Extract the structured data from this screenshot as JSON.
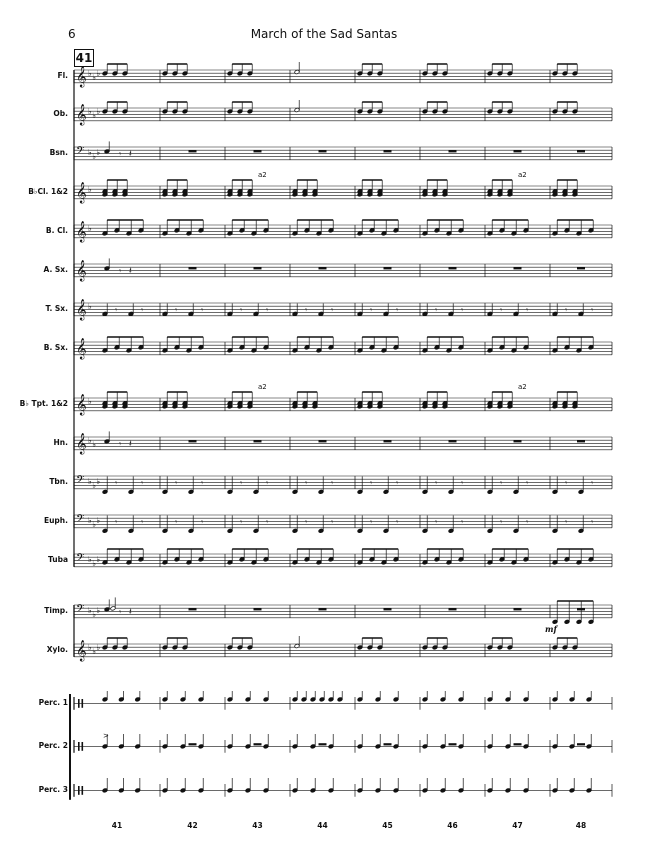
{
  "header": {
    "page_number": "6",
    "title": "March of the Sad Santas"
  },
  "rehearsal_mark": "41",
  "instruments": [
    {
      "label": "Fl.",
      "clef": "treble",
      "key": "flats3"
    },
    {
      "label": "Ob.",
      "clef": "treble",
      "key": "flats3"
    },
    {
      "label": "Bsn.",
      "clef": "bass",
      "key": "flats3"
    },
    {
      "label": "B♭Cl. 1&2",
      "clef": "treble",
      "key": "flats1"
    },
    {
      "label": "B. Cl.",
      "clef": "treble",
      "key": "flats1"
    },
    {
      "label": "A. Sx.",
      "clef": "treble",
      "key": "none"
    },
    {
      "label": "T. Sx.",
      "clef": "treble",
      "key": "flats1"
    },
    {
      "label": "B. Sx.",
      "clef": "treble",
      "key": "none"
    },
    {
      "label": "B♭ Tpt. 1&2",
      "clef": "treble",
      "key": "flats1"
    },
    {
      "label": "Hn.",
      "clef": "treble",
      "key": "flats2"
    },
    {
      "label": "Tbn.",
      "clef": "bass",
      "key": "flats3"
    },
    {
      "label": "Euph.",
      "clef": "bass",
      "key": "flats3"
    },
    {
      "label": "Tuba",
      "clef": "bass",
      "key": "flats3"
    },
    {
      "label": "Timp.",
      "clef": "bass",
      "key": "flats3"
    },
    {
      "label": "Xylo.",
      "clef": "treble",
      "key": "flats3"
    },
    {
      "label": "Perc. 1",
      "clef": "perc",
      "key": "none"
    },
    {
      "label": "Perc. 2",
      "clef": "perc",
      "key": "none"
    },
    {
      "label": "Perc. 3",
      "clef": "perc",
      "key": "none"
    }
  ],
  "annotations": {
    "a2": "a2",
    "dynamic_mf": "mf"
  },
  "measure_numbers": [
    "41",
    "42",
    "43",
    "44",
    "45",
    "46",
    "47",
    "48"
  ]
}
